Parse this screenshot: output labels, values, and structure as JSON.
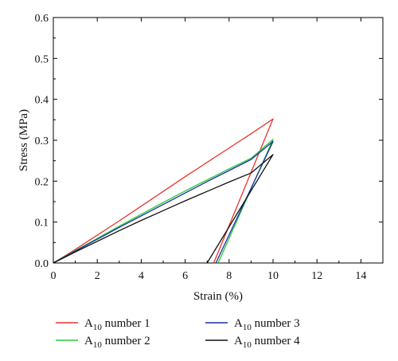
{
  "chart_data": {
    "type": "line",
    "xlabel": "Strain (%)",
    "ylabel": "Stress (MPa)",
    "xlim": [
      0,
      15
    ],
    "ylim": [
      0,
      0.6
    ],
    "xticks": [
      "0",
      "2",
      "4",
      "6",
      "8",
      "10",
      "12",
      "14"
    ],
    "yticks": [
      "0.0",
      "0.1",
      "0.2",
      "0.3",
      "0.4",
      "0.5",
      "0.6"
    ],
    "grid": false,
    "legend_position": "bottom",
    "series": [
      {
        "name": "A10 number 1",
        "name_main": "A",
        "name_sub": "10",
        "name_rest": " number 1",
        "color": "#e8332e",
        "x": [
          0,
          1,
          2,
          3,
          4,
          5,
          6,
          7,
          8,
          9,
          10,
          7.3
        ],
        "y": [
          0,
          0.033,
          0.068,
          0.103,
          0.139,
          0.175,
          0.211,
          0.246,
          0.281,
          0.316,
          0.352,
          0
        ]
      },
      {
        "name": "A10 number 2",
        "name_main": "A",
        "name_sub": "10",
        "name_rest": " number 2",
        "color": "#22cc33",
        "x": [
          0,
          1,
          2,
          3,
          4,
          5,
          6,
          7,
          8,
          9,
          10,
          7.5
        ],
        "y": [
          0,
          0.03,
          0.06,
          0.09,
          0.119,
          0.148,
          0.176,
          0.203,
          0.23,
          0.256,
          0.302,
          0
        ]
      },
      {
        "name": "A10 number 3",
        "name_main": "A",
        "name_sub": "10",
        "name_rest": " number 3",
        "color": "#1c2fa8",
        "x": [
          0,
          1,
          2,
          3,
          4,
          5,
          6,
          7,
          8,
          9,
          10,
          7.4
        ],
        "y": [
          0,
          0.029,
          0.058,
          0.087,
          0.115,
          0.143,
          0.171,
          0.199,
          0.226,
          0.253,
          0.297,
          0
        ]
      },
      {
        "name": "A10 number 4",
        "name_main": "A",
        "name_sub": "10",
        "name_rest": " number 4",
        "color": "#111111",
        "x": [
          0,
          1,
          2,
          3,
          4,
          5,
          6,
          7,
          8,
          9,
          10,
          7
        ],
        "y": [
          0,
          0.027,
          0.053,
          0.079,
          0.104,
          0.128,
          0.152,
          0.175,
          0.198,
          0.22,
          0.265,
          0
        ]
      }
    ]
  }
}
